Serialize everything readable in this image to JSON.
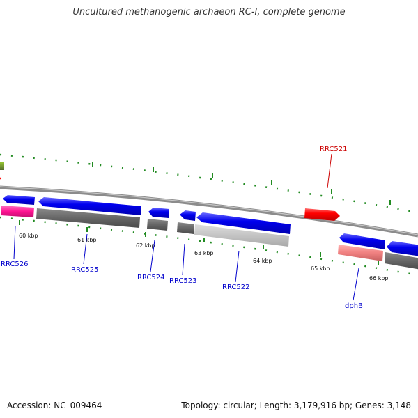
{
  "title": "Uncultured methanogenic archaeon RC-I, complete genome",
  "footer": {
    "accession": "Accession: NC_009464",
    "summary": "Topology: circular; Length: 3,179,916 bp; Genes: 3,148"
  },
  "colors": {
    "backbone": "#888888",
    "tick": "#228b22",
    "cds_blue": "#0000ee",
    "cds_red": "#ff0000",
    "label_blue": "#0000cc",
    "label_red": "#cc0000"
  },
  "scale": {
    "kbp_labels": [
      "60 kbp",
      "61 kbp",
      "62 kbp",
      "63 kbp",
      "64 kbp",
      "65 kbp",
      "66 kbp"
    ]
  },
  "genes": {
    "labels": [
      {
        "name": "RRC526",
        "strand": "-"
      },
      {
        "name": "RRC525",
        "strand": "-"
      },
      {
        "name": "RRC524",
        "strand": "-"
      },
      {
        "name": "RRC523",
        "strand": "-"
      },
      {
        "name": "RRC522",
        "strand": "-"
      },
      {
        "name": "RRC521",
        "strand": "+"
      },
      {
        "name": "dphB",
        "strand": "-"
      }
    ]
  }
}
